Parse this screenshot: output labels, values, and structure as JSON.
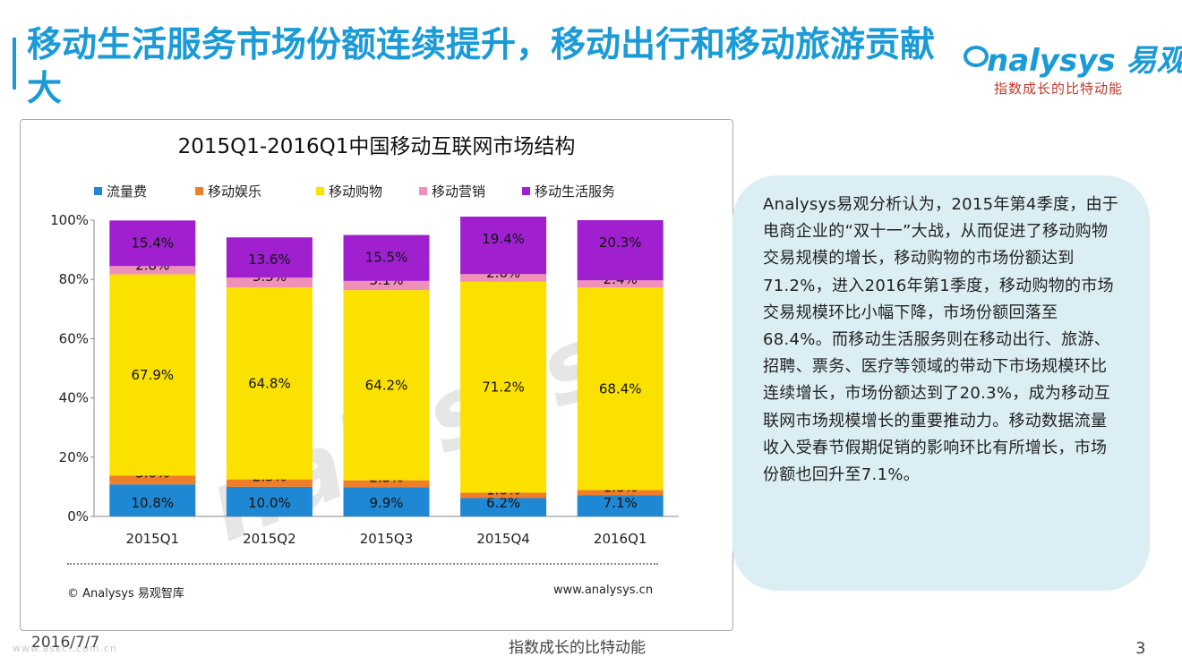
{
  "slide": {
    "title": "移动生活服务市场份额连续提升，移动出行和移动旅游贡献大",
    "logo_text": "nalysys 易观",
    "logo_slogan": "指数成长的比特动能",
    "date": "2016/7/7",
    "footer_slogan": "指数成长的比特动能",
    "page_number": "3",
    "watermark_text": "www.askci.com.cn",
    "analysis_text": "Analysys易观分析认为，2015年第4季度，由于电商企业的“双十一”大战，从而促进了移动购物交易规模的增长，移动购物的市场份额达到71.2%，进入2016年第1季度，移动购物的市场交易规模环比小幅下降，市场份额回落至68.4%。而移动生活服务则在移动出行、旅游、招聘、票务、医疗等领域的带动下市场规模环比连续增长，市场份额达到了20.3%，成为移动互联网市场规模增长的重要推动力。移动数据流量收入受春节假期促销的影响环比有所增长，市场份额也回升至7.1%。",
    "chart_watermark": "nalysys",
    "source": "© Analysys 易观智库",
    "website": "www.analysys.cn"
  },
  "chart_data": {
    "type": "bar",
    "stacked": true,
    "title": "2015Q1-2016Q1中国移动互联网市场结构",
    "categories": [
      "2015Q1",
      "2015Q2",
      "2015Q3",
      "2015Q4",
      "2016Q1"
    ],
    "ylim": [
      0,
      100
    ],
    "yticks": [
      0,
      20,
      40,
      60,
      80,
      100
    ],
    "ytick_labels": [
      "0%",
      "20%",
      "40%",
      "60%",
      "80%",
      "100%"
    ],
    "legend_position": "top",
    "series": [
      {
        "name": "流量费",
        "color": "#1e88d4",
        "values": [
          10.8,
          10.0,
          9.9,
          6.2,
          7.1
        ],
        "labels": [
          "10.8%",
          "10.0%",
          "9.9%",
          "6.2%",
          "7.1%"
        ]
      },
      {
        "name": "移动娱乐",
        "color": "#f07d28",
        "values": [
          3.0,
          2.5,
          2.3,
          1.8,
          1.8
        ],
        "labels": [
          "3.0%",
          "2.5%",
          "2.3%",
          "1.8%",
          "1.8%"
        ]
      },
      {
        "name": "移动购物",
        "color": "#fbe100",
        "values": [
          67.9,
          64.8,
          64.2,
          71.2,
          68.4
        ],
        "labels": [
          "67.9%",
          "64.8%",
          "64.2%",
          "71.2%",
          "68.4%"
        ]
      },
      {
        "name": "移动营销",
        "color": "#f090b8",
        "values": [
          2.8,
          3.3,
          3.1,
          2.6,
          2.4
        ],
        "labels": [
          "2.8%",
          "3.3%",
          "3.1%",
          "2.6%",
          "2.4%"
        ]
      },
      {
        "name": "移动生活服务",
        "color": "#a020d0",
        "values": [
          15.4,
          13.6,
          15.5,
          19.4,
          20.3
        ],
        "labels": [
          "15.4%",
          "13.6%",
          "15.5%",
          "19.4%",
          "20.3%"
        ]
      }
    ]
  }
}
